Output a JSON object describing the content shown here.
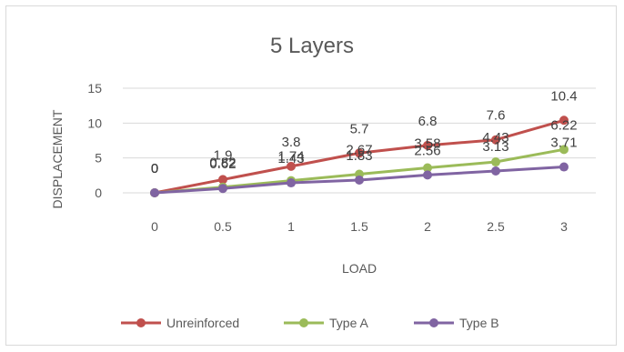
{
  "chart_data": {
    "type": "line",
    "title": "5 Layers",
    "xlabel": "LOAD",
    "ylabel": "DISPLACEMENT",
    "x": [
      0,
      0.5,
      1,
      1.5,
      2,
      2.5,
      3
    ],
    "x_tick_labels": [
      "0",
      "0.5",
      "1",
      "1.5",
      "2",
      "2.5",
      "3"
    ],
    "y_ticks": [
      0,
      5,
      10,
      15
    ],
    "ylim": [
      0,
      15
    ],
    "grid": true,
    "legend_position": "bottom",
    "series": [
      {
        "name": "Unreinforced",
        "color": "#c0504d",
        "values": [
          0,
          1.9,
          3.8,
          5.7,
          6.8,
          7.6,
          10.4
        ],
        "labels": [
          "0",
          "1.9",
          "3.8",
          "5.7",
          "6.8",
          "7.6",
          "10.4"
        ]
      },
      {
        "name": "Type A",
        "color": "#9bbb59",
        "values": [
          0,
          0.82,
          1.74,
          2.67,
          3.58,
          4.43,
          6.22
        ],
        "labels": [
          "0",
          "0.82",
          "1.74",
          "2.67",
          "3.58",
          "4.43",
          "6.22"
        ]
      },
      {
        "name": "Type B",
        "color": "#8064a2",
        "values": [
          0,
          0.62,
          1.43,
          1.83,
          2.56,
          3.13,
          3.71
        ],
        "labels": [
          "0",
          "0.62",
          "1.43",
          "1.83",
          "2.56",
          "3.13",
          "3.71"
        ]
      }
    ]
  }
}
